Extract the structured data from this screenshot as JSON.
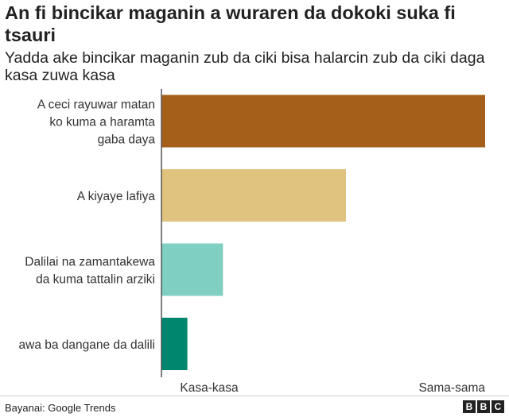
{
  "title": "An fi bincikar maganin a wuraren da dokoki suka fi tsauri",
  "subtitle": "Yadda ake bincikar maganin zub da ciki  bisa halarcin zub da ciki daga kasa zuwa kasa",
  "source": "Bayanai: Google Trends",
  "logo": [
    "B",
    "B",
    "C"
  ],
  "chart_data": {
    "type": "bar",
    "orientation": "horizontal",
    "categories": [
      [
        "A ceci rayuwar matan",
        "ko kuma a haramta",
        "gaba daya"
      ],
      [
        "A kiyaye lafiya"
      ],
      [
        "Dalilai na zamantakewa",
        "da kuma tattalin arziki"
      ],
      [
        "awa ba dangane da dalili"
      ]
    ],
    "values": [
      100,
      57,
      19,
      8
    ],
    "colors": [
      "#a65e1b",
      "#e0c37e",
      "#80cfc3",
      "#00856f"
    ],
    "xlim": [
      0,
      100
    ],
    "x_axis_labels": {
      "low": "Kasa-kasa",
      "high": "Sama-sama"
    },
    "grid": false,
    "legend": "none"
  }
}
